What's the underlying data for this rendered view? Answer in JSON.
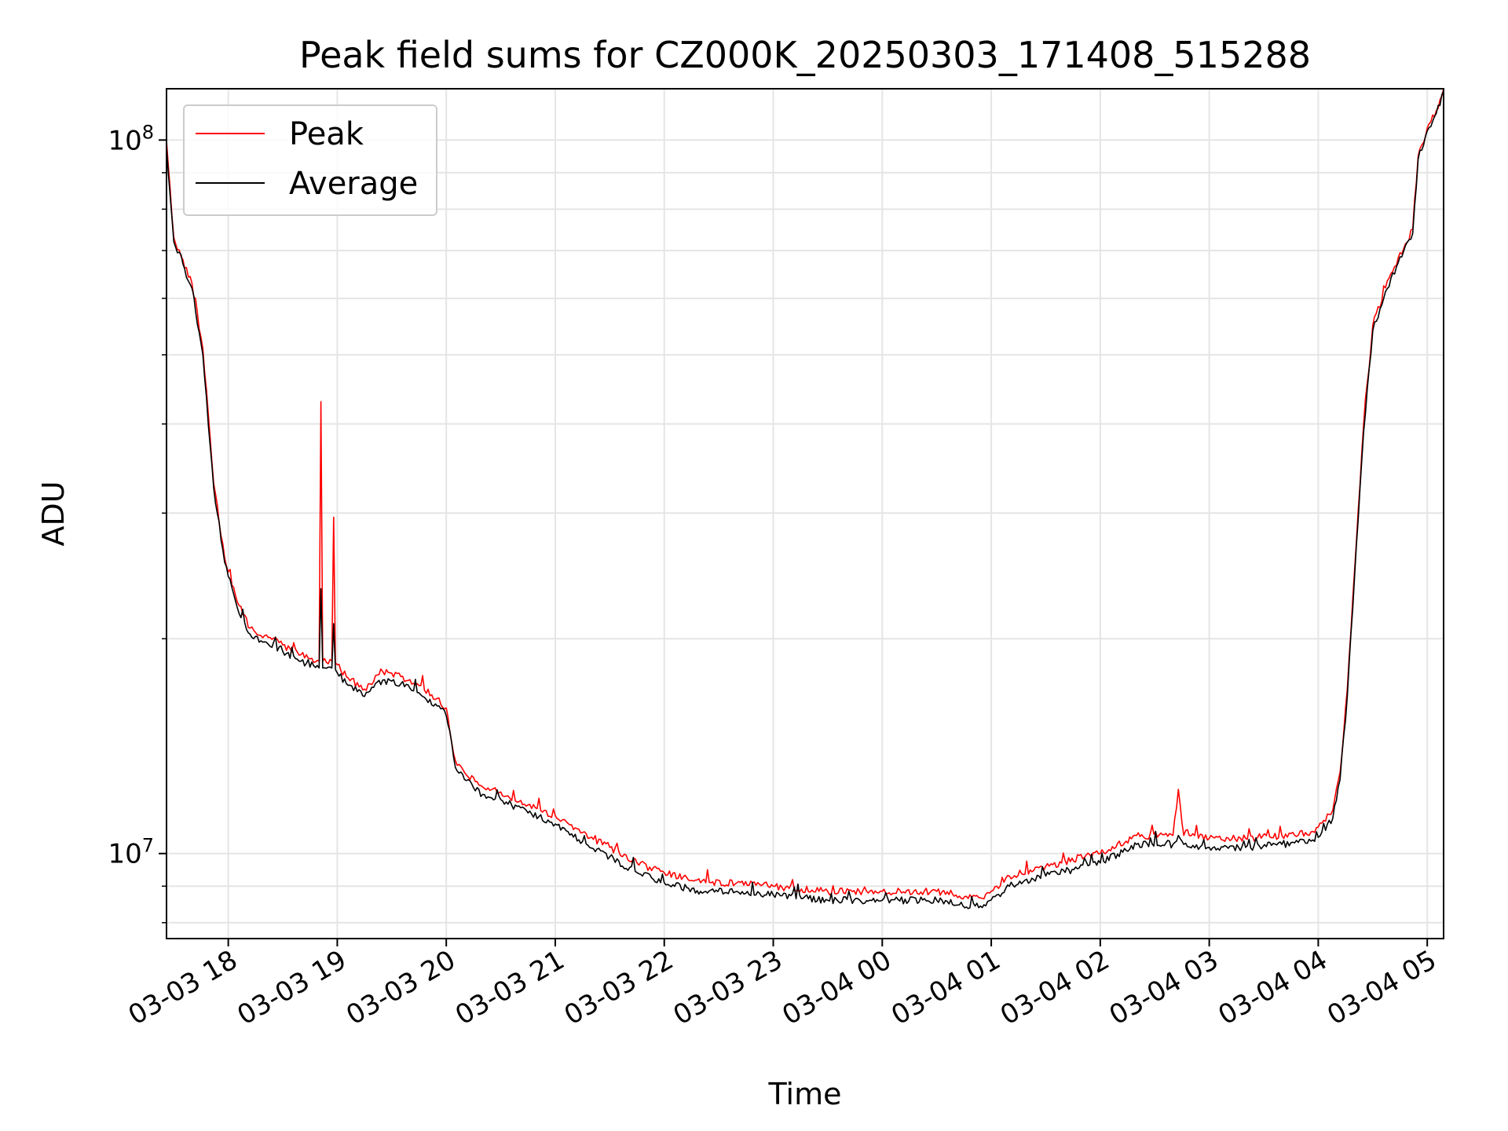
{
  "chart_data": {
    "type": "line",
    "title": "Peak field sums for CZ000K_20250303_171408_515288",
    "xlabel": "Time",
    "ylabel": "ADU",
    "y_scale": "log",
    "ylim": [
      7600000,
      118000000
    ],
    "xlim": [
      "2025-03-03 17:26",
      "2025-03-04 05:09"
    ],
    "grid": true,
    "legend_position": "top-left",
    "x_tick_labels": [
      "03-03 18",
      "03-03 19",
      "03-03 20",
      "03-03 21",
      "03-03 22",
      "03-03 23",
      "03-04 00",
      "03-04 01",
      "03-04 02",
      "03-04 03",
      "03-04 04",
      "03-04 05"
    ],
    "x_tick_values": [
      "2025-03-03 18:00",
      "2025-03-03 19:00",
      "2025-03-03 20:00",
      "2025-03-03 21:00",
      "2025-03-03 22:00",
      "2025-03-03 23:00",
      "2025-03-04 00:00",
      "2025-03-04 01:00",
      "2025-03-04 02:00",
      "2025-03-04 03:00",
      "2025-03-04 04:00",
      "2025-03-04 05:00"
    ],
    "y_tick_values": [
      10000000,
      100000000
    ],
    "y_tick_labels": [
      {
        "base": "10",
        "exp": "7"
      },
      {
        "base": "10",
        "exp": "8"
      }
    ],
    "series": [
      {
        "name": "Peak",
        "color": "#ff0000",
        "x": [
          "2025-03-03 17:26",
          "2025-03-03 17:30",
          "2025-03-03 17:40",
          "2025-03-03 17:46",
          "2025-03-03 17:52",
          "2025-03-03 17:58",
          "2025-03-03 18:05",
          "2025-03-03 18:12",
          "2025-03-03 18:20",
          "2025-03-03 18:30",
          "2025-03-03 18:40",
          "2025-03-03 18:50",
          "2025-03-03 18:51",
          "2025-03-03 18:52",
          "2025-03-03 18:57",
          "2025-03-03 18:58",
          "2025-03-03 18:59",
          "2025-03-03 19:05",
          "2025-03-03 19:15",
          "2025-03-03 19:25",
          "2025-03-03 19:35",
          "2025-03-03 19:45",
          "2025-03-03 19:55",
          "2025-03-03 20:00",
          "2025-03-03 20:05",
          "2025-03-03 20:10",
          "2025-03-03 20:20",
          "2025-03-03 20:30",
          "2025-03-03 20:45",
          "2025-03-03 21:00",
          "2025-03-03 21:15",
          "2025-03-03 21:30",
          "2025-03-03 21:45",
          "2025-03-03 22:00",
          "2025-03-03 22:20",
          "2025-03-03 22:40",
          "2025-03-03 23:00",
          "2025-03-03 23:30",
          "2025-03-04 00:00",
          "2025-03-04 00:30",
          "2025-03-04 00:55",
          "2025-03-04 01:10",
          "2025-03-04 01:30",
          "2025-03-04 02:00",
          "2025-03-04 02:20",
          "2025-03-04 02:40",
          "2025-03-04 02:43",
          "2025-03-04 02:46",
          "2025-03-04 03:00",
          "2025-03-04 03:20",
          "2025-03-04 03:40",
          "2025-03-04 03:58",
          "2025-03-04 04:08",
          "2025-03-04 04:12",
          "2025-03-04 04:16",
          "2025-03-04 04:20",
          "2025-03-04 04:25",
          "2025-03-04 04:30",
          "2025-03-04 04:40",
          "2025-03-04 04:52",
          "2025-03-04 04:55",
          "2025-03-04 05:00",
          "2025-03-04 05:05",
          "2025-03-04 05:09"
        ],
        "y": [
          100000000,
          73000000,
          63000000,
          51000000,
          33000000,
          26000000,
          22500000,
          20700000,
          20200000,
          19600000,
          19000000,
          18600000,
          43000000,
          18600000,
          18600000,
          29600000,
          18500000,
          17700000,
          17000000,
          18000000,
          17700000,
          17200000,
          16500000,
          16000000,
          13500000,
          13000000,
          12400000,
          12200000,
          11700000,
          11300000,
          10700000,
          10200000,
          9700000,
          9400000,
          9100000,
          9100000,
          9000000,
          8850000,
          8850000,
          8850000,
          8650000,
          9300000,
          9600000,
          10000000,
          10600000,
          10600000,
          12300000,
          10600000,
          10500000,
          10500000,
          10600000,
          10700000,
          11500000,
          13000000,
          17000000,
          25000000,
          40000000,
          55000000,
          65000000,
          75000000,
          95000000,
          104000000,
          110000000,
          118000000
        ]
      },
      {
        "name": "Average",
        "color": "#000000",
        "x": [
          "2025-03-03 17:26",
          "2025-03-03 17:30",
          "2025-03-03 17:40",
          "2025-03-03 17:46",
          "2025-03-03 17:52",
          "2025-03-03 17:58",
          "2025-03-03 18:05",
          "2025-03-03 18:12",
          "2025-03-03 18:20",
          "2025-03-03 18:30",
          "2025-03-03 18:40",
          "2025-03-03 18:50",
          "2025-03-03 18:51",
          "2025-03-03 18:52",
          "2025-03-03 18:57",
          "2025-03-03 18:58",
          "2025-03-03 18:59",
          "2025-03-03 19:05",
          "2025-03-03 19:15",
          "2025-03-03 19:25",
          "2025-03-03 19:35",
          "2025-03-03 19:45",
          "2025-03-03 19:55",
          "2025-03-03 20:00",
          "2025-03-03 20:05",
          "2025-03-03 20:10",
          "2025-03-03 20:20",
          "2025-03-03 20:30",
          "2025-03-03 20:45",
          "2025-03-03 21:00",
          "2025-03-03 21:15",
          "2025-03-03 21:30",
          "2025-03-03 21:45",
          "2025-03-03 22:00",
          "2025-03-03 22:20",
          "2025-03-03 22:40",
          "2025-03-03 23:00",
          "2025-03-03 23:30",
          "2025-03-04 00:00",
          "2025-03-04 00:30",
          "2025-03-04 00:55",
          "2025-03-04 01:10",
          "2025-03-04 01:30",
          "2025-03-04 02:00",
          "2025-03-04 02:20",
          "2025-03-04 02:40",
          "2025-03-04 02:43",
          "2025-03-04 02:46",
          "2025-03-04 03:00",
          "2025-03-04 03:20",
          "2025-03-04 03:40",
          "2025-03-04 03:58",
          "2025-03-04 04:08",
          "2025-03-04 04:12",
          "2025-03-04 04:16",
          "2025-03-04 04:20",
          "2025-03-04 04:25",
          "2025-03-04 04:30",
          "2025-03-04 04:40",
          "2025-03-04 04:52",
          "2025-03-04 04:55",
          "2025-03-04 05:00",
          "2025-03-04 05:05",
          "2025-03-04 05:09"
        ],
        "y": [
          98000000,
          72000000,
          62000000,
          50000000,
          32500000,
          25600000,
          22100000,
          20300000,
          19800000,
          19200000,
          18600000,
          18200000,
          23500000,
          18200000,
          18200000,
          21000000,
          18100000,
          17300000,
          16600000,
          17500000,
          17300000,
          16800000,
          16100000,
          15600000,
          13200000,
          12700000,
          12100000,
          11900000,
          11400000,
          11000000,
          10400000,
          9900000,
          9400000,
          9100000,
          8850000,
          8850000,
          8750000,
          8600000,
          8600000,
          8600000,
          8400000,
          9000000,
          9300000,
          9700000,
          10300000,
          10300000,
          10600000,
          10300000,
          10200000,
          10200000,
          10300000,
          10400000,
          11200000,
          12700000,
          16600000,
          24500000,
          39000000,
          54000000,
          64000000,
          74000000,
          94000000,
          103000000,
          109000000,
          117000000
        ]
      }
    ]
  }
}
